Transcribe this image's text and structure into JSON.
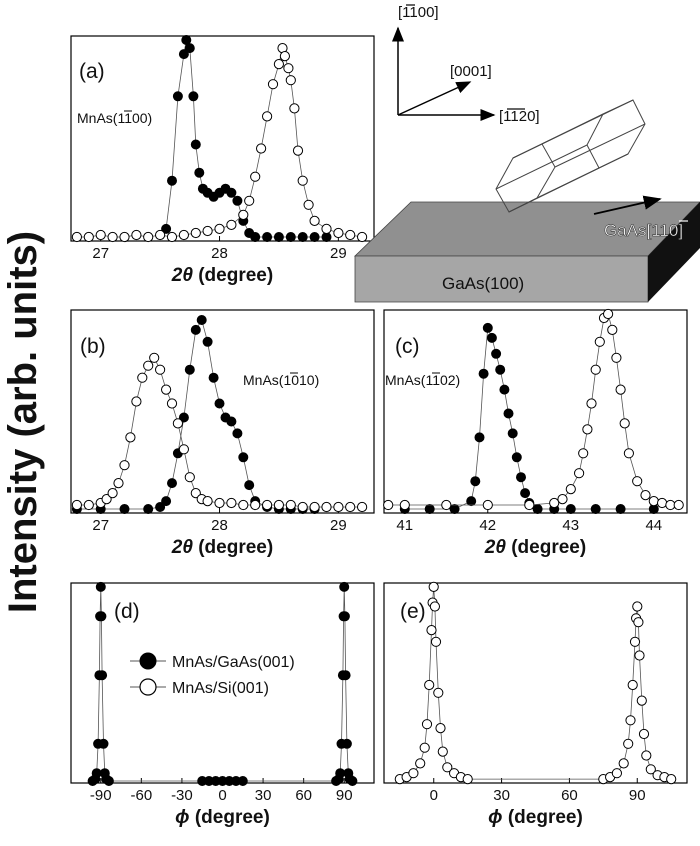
{
  "figure": {
    "ylabel": "Intensity (arb. units)",
    "legend": [
      {
        "marker": "filled",
        "label": "MnAs/GaAs(001)"
      },
      {
        "marker": "open",
        "label": "MnAs/Si(001)"
      }
    ],
    "schematic": {
      "directions": [
        {
          "label": "[1100]",
          "bar": "1"
        },
        {
          "label": "[0001]"
        },
        {
          "label": "[1120]",
          "bar": "11"
        }
      ],
      "substrate": "GaAs(100)",
      "substrate_direction": {
        "label": "GaAs[110]",
        "bar": "1"
      }
    }
  },
  "chart_data": [
    {
      "id": "a",
      "type": "scatter",
      "tag": "(a)",
      "reflection": "MnAs(1100)",
      "xlabel_symbol": "2θ",
      "xlabel_unit": "(degree)",
      "xlim": [
        26.75,
        29.3
      ],
      "ylim": [
        0,
        1.02
      ],
      "xticks": [
        27,
        28,
        29
      ],
      "xtick_labels": [
        "27",
        "28",
        "29"
      ],
      "series": [
        {
          "name": "MnAs/GaAs(001)",
          "marker": "filled",
          "x": [
            27.55,
            27.6,
            27.65,
            27.7,
            27.72,
            27.75,
            27.78,
            27.8,
            27.83,
            27.86,
            27.9,
            27.95,
            28.0,
            28.05,
            28.1,
            28.15,
            28.2,
            28.25,
            28.3,
            28.4,
            28.5,
            28.6,
            28.7,
            28.8,
            28.9
          ],
          "y": [
            0.06,
            0.3,
            0.72,
            0.93,
            1.0,
            0.96,
            0.72,
            0.48,
            0.34,
            0.26,
            0.24,
            0.22,
            0.24,
            0.26,
            0.24,
            0.2,
            0.1,
            0.04,
            0.02,
            0.02,
            0.02,
            0.02,
            0.02,
            0.02,
            0.02
          ]
        },
        {
          "name": "MnAs/Si(001)",
          "marker": "open",
          "x": [
            26.8,
            26.9,
            27.0,
            27.1,
            27.2,
            27.3,
            27.4,
            27.5,
            27.6,
            27.7,
            27.8,
            27.9,
            28.0,
            28.1,
            28.2,
            28.25,
            28.3,
            28.35,
            28.4,
            28.45,
            28.5,
            28.53,
            28.55,
            28.58,
            28.6,
            28.63,
            28.66,
            28.7,
            28.75,
            28.8,
            28.9,
            29.0,
            29.1,
            29.2
          ],
          "y": [
            0.02,
            0.02,
            0.03,
            0.02,
            0.02,
            0.03,
            0.02,
            0.03,
            0.02,
            0.03,
            0.04,
            0.05,
            0.06,
            0.08,
            0.13,
            0.2,
            0.32,
            0.46,
            0.62,
            0.78,
            0.88,
            0.96,
            0.92,
            0.86,
            0.8,
            0.66,
            0.45,
            0.3,
            0.18,
            0.1,
            0.06,
            0.04,
            0.03,
            0.02
          ]
        }
      ]
    },
    {
      "id": "b",
      "type": "scatter",
      "tag": "(b)",
      "reflection": "MnAs(1010)",
      "xlabel_symbol": "2θ",
      "xlabel_unit": "(degree)",
      "xlim": [
        26.75,
        29.3
      ],
      "ylim": [
        0,
        1.02
      ],
      "xticks": [
        27,
        28,
        29
      ],
      "xtick_labels": [
        "27",
        "28",
        "29"
      ],
      "series": [
        {
          "name": "MnAs/GaAs(001)",
          "marker": "filled",
          "x": [
            26.8,
            27.0,
            27.2,
            27.4,
            27.5,
            27.55,
            27.6,
            27.65,
            27.7,
            27.75,
            27.8,
            27.85,
            27.9,
            27.95,
            28.0,
            28.05,
            28.1,
            28.15,
            28.2,
            28.25,
            28.3,
            28.4,
            28.5,
            28.6,
            28.7,
            28.8
          ],
          "y": [
            0.02,
            0.02,
            0.02,
            0.02,
            0.03,
            0.06,
            0.15,
            0.3,
            0.48,
            0.72,
            0.92,
            0.97,
            0.86,
            0.68,
            0.55,
            0.48,
            0.46,
            0.4,
            0.28,
            0.14,
            0.06,
            0.03,
            0.02,
            0.02,
            0.02,
            0.02
          ]
        },
        {
          "name": "MnAs/Si(001)",
          "marker": "open",
          "x": [
            26.8,
            26.9,
            27.0,
            27.05,
            27.1,
            27.15,
            27.2,
            27.25,
            27.3,
            27.35,
            27.4,
            27.45,
            27.5,
            27.55,
            27.6,
            27.65,
            27.7,
            27.75,
            27.8,
            27.85,
            27.9,
            28.0,
            28.1,
            28.2,
            28.3,
            28.4,
            28.5,
            28.6,
            28.7,
            28.8,
            28.9,
            29.0,
            29.1,
            29.2
          ],
          "y": [
            0.04,
            0.04,
            0.05,
            0.07,
            0.1,
            0.15,
            0.24,
            0.38,
            0.56,
            0.68,
            0.74,
            0.78,
            0.72,
            0.62,
            0.55,
            0.45,
            0.32,
            0.18,
            0.1,
            0.07,
            0.06,
            0.05,
            0.05,
            0.04,
            0.04,
            0.04,
            0.04,
            0.04,
            0.03,
            0.03,
            0.03,
            0.03,
            0.03,
            0.03
          ]
        }
      ]
    },
    {
      "id": "c",
      "type": "scatter",
      "tag": "(c)",
      "reflection": "MnAs(1102)",
      "xlabel_symbol": "2θ",
      "xlabel_unit": "(degree)",
      "xlim": [
        40.75,
        44.4
      ],
      "ylim": [
        0,
        1.02
      ],
      "xticks": [
        41,
        42,
        43,
        44
      ],
      "xtick_labels": [
        "41",
        "42",
        "43",
        "44"
      ],
      "series": [
        {
          "name": "MnAs/GaAs(001)",
          "marker": "filled",
          "x": [
            41.0,
            41.3,
            41.6,
            41.8,
            41.85,
            41.9,
            41.95,
            42.0,
            42.05,
            42.1,
            42.15,
            42.2,
            42.25,
            42.3,
            42.35,
            42.4,
            42.45,
            42.5,
            42.6,
            42.8,
            43.0,
            43.3,
            43.6,
            44.0
          ],
          "y": [
            0.02,
            0.02,
            0.02,
            0.06,
            0.16,
            0.38,
            0.7,
            0.93,
            0.88,
            0.8,
            0.72,
            0.62,
            0.5,
            0.4,
            0.28,
            0.18,
            0.1,
            0.05,
            0.02,
            0.02,
            0.02,
            0.02,
            0.02,
            0.02
          ]
        },
        {
          "name": "MnAs/Si(001)",
          "marker": "open",
          "x": [
            40.8,
            41.0,
            41.5,
            42.0,
            42.5,
            42.8,
            42.9,
            43.0,
            43.1,
            43.15,
            43.2,
            43.25,
            43.3,
            43.35,
            43.4,
            43.45,
            43.5,
            43.55,
            43.6,
            43.65,
            43.7,
            43.8,
            43.9,
            44.0,
            44.1,
            44.2,
            44.3
          ],
          "y": [
            0.04,
            0.04,
            0.04,
            0.04,
            0.04,
            0.05,
            0.07,
            0.12,
            0.2,
            0.3,
            0.42,
            0.55,
            0.72,
            0.86,
            0.98,
            1.0,
            0.92,
            0.78,
            0.62,
            0.45,
            0.3,
            0.16,
            0.09,
            0.06,
            0.05,
            0.04,
            0.04
          ]
        }
      ]
    },
    {
      "id": "d",
      "type": "scatter",
      "tag": "(d)",
      "xlabel_symbol": "ϕ",
      "xlabel_unit": "(degree)",
      "xlim": [
        -112,
        112
      ],
      "ylim": [
        0,
        1.02
      ],
      "xticks": [
        -90,
        -60,
        -30,
        0,
        30,
        60,
        90
      ],
      "xtick_labels": [
        "-90",
        "-60",
        "-30",
        "0",
        "30",
        "60",
        "90"
      ],
      "series": [
        {
          "name": "MnAs/GaAs(001)",
          "marker": "filled",
          "x": [
            -96,
            -94,
            -93,
            -92,
            -91,
            -90.5,
            -90,
            -89.5,
            -89,
            -88,
            -87,
            -86,
            -84,
            -15,
            -10,
            -5,
            0,
            5,
            10,
            15,
            84,
            86,
            87,
            88,
            89,
            89.5,
            90,
            90.5,
            91,
            92,
            93,
            94,
            96
          ],
          "y": [
            0.01,
            0.02,
            0.05,
            0.2,
            0.55,
            0.85,
            1.0,
            0.85,
            0.55,
            0.2,
            0.05,
            0.02,
            0.01,
            0.01,
            0.01,
            0.01,
            0.01,
            0.01,
            0.01,
            0.01,
            0.01,
            0.02,
            0.05,
            0.2,
            0.55,
            0.85,
            1.0,
            0.85,
            0.55,
            0.2,
            0.05,
            0.02,
            0.01
          ]
        }
      ]
    },
    {
      "id": "e",
      "type": "scatter",
      "tag": "(e)",
      "xlabel_symbol": "ϕ",
      "xlabel_unit": "(degree)",
      "xlim": [
        -22,
        112
      ],
      "ylim": [
        0,
        1.02
      ],
      "xticks": [
        0,
        30,
        60,
        90
      ],
      "xtick_labels": [
        "0",
        "30",
        "60",
        "90"
      ],
      "series": [
        {
          "name": "MnAs/Si(001)",
          "marker": "open",
          "x": [
            -15,
            -12,
            -9,
            -6,
            -4,
            -3,
            -2,
            -1,
            -0.5,
            0,
            0.5,
            1,
            2,
            3,
            4,
            6,
            9,
            12,
            15,
            75,
            78,
            81,
            84,
            86,
            87,
            88,
            89,
            89.5,
            90,
            90.5,
            91,
            92,
            93,
            94,
            96,
            99,
            102,
            105
          ],
          "y": [
            0.02,
            0.03,
            0.05,
            0.1,
            0.18,
            0.3,
            0.5,
            0.78,
            0.92,
            1.0,
            0.9,
            0.72,
            0.46,
            0.28,
            0.16,
            0.08,
            0.05,
            0.03,
            0.02,
            0.02,
            0.03,
            0.05,
            0.1,
            0.2,
            0.32,
            0.5,
            0.72,
            0.84,
            0.9,
            0.82,
            0.65,
            0.42,
            0.25,
            0.14,
            0.07,
            0.04,
            0.03,
            0.02
          ]
        }
      ]
    }
  ]
}
